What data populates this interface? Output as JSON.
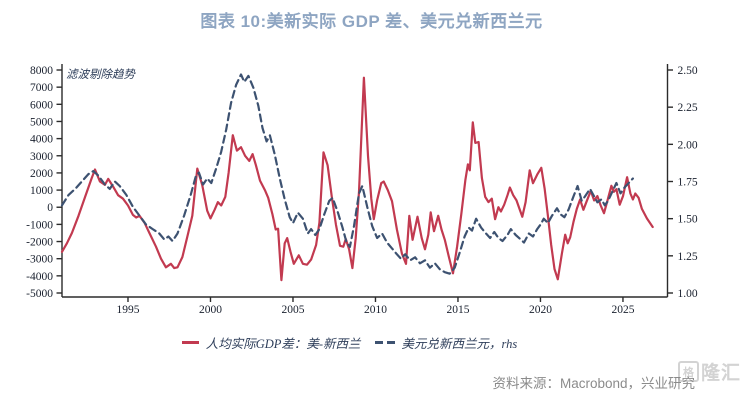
{
  "title": "图表 10:美新实际 GDP 差、美元兑新西兰元",
  "colors": {
    "title": "#8ea5c2",
    "axis": "#2b2b2b",
    "tick_label": "#19202e",
    "annotation": "#2e3e5a",
    "legend_text": "#2e3e5a",
    "footer_text": "#8b8b8b",
    "series_gdp": "#c23a50",
    "series_fx": "#3d5271"
  },
  "legend": {
    "items": [
      {
        "label": "人均实际GDP差：美-新西兰",
        "style": "solid"
      },
      {
        "label": "美元兑新西兰元，rhs",
        "style": "dashed"
      }
    ]
  },
  "footer": {
    "source_text": "资料来源：Macrobond，兴业研究"
  },
  "watermark": {
    "box_char": "格",
    "text": "隆汇"
  },
  "chart_data": {
    "type": "line",
    "title": "图表 10:美新实际 GDP 差、美元兑新西兰元",
    "annotation": "滤波剔除趋势",
    "grid": false,
    "legend_position": "bottom",
    "x_axis": {
      "range": [
        1991,
        2027.7
      ],
      "ticks": [
        1995,
        2000,
        2005,
        2010,
        2015,
        2020,
        2025
      ]
    },
    "y_left": {
      "range": [
        -5000,
        8000
      ],
      "ticks": [
        8000,
        7000,
        6000,
        5000,
        4000,
        3000,
        2000,
        1000,
        0,
        -1000,
        -2000,
        -3000,
        -4000,
        -5000
      ]
    },
    "y_right": {
      "range": [
        1.0,
        2.5
      ],
      "ticks": [
        2.5,
        2.25,
        2.0,
        1.75,
        1.5,
        1.25,
        1.0
      ]
    },
    "series": [
      {
        "name": "人均实际GDP差：美-新西兰",
        "axis": "left",
        "color": "#c23a50",
        "style": "solid",
        "points": [
          [
            1991.0,
            -2600
          ],
          [
            1991.3,
            -2100
          ],
          [
            1991.6,
            -1500
          ],
          [
            1992.0,
            -500
          ],
          [
            1992.4,
            600
          ],
          [
            1992.8,
            1700
          ],
          [
            1993.0,
            2200
          ],
          [
            1993.3,
            1500
          ],
          [
            1993.6,
            1300
          ],
          [
            1993.8,
            1650
          ],
          [
            1994.1,
            1200
          ],
          [
            1994.4,
            700
          ],
          [
            1994.7,
            500
          ],
          [
            1995.0,
            100
          ],
          [
            1995.3,
            -450
          ],
          [
            1995.5,
            -600
          ],
          [
            1995.7,
            -500
          ],
          [
            1996.0,
            -900
          ],
          [
            1996.3,
            -1500
          ],
          [
            1996.7,
            -2300
          ],
          [
            1997.0,
            -3000
          ],
          [
            1997.3,
            -3500
          ],
          [
            1997.6,
            -3300
          ],
          [
            1997.8,
            -3550
          ],
          [
            1998.0,
            -3500
          ],
          [
            1998.3,
            -2900
          ],
          [
            1998.6,
            -1700
          ],
          [
            1998.9,
            -500
          ],
          [
            1999.2,
            2250
          ],
          [
            1999.5,
            1300
          ],
          [
            1999.8,
            -200
          ],
          [
            2000.0,
            -650
          ],
          [
            2000.25,
            -150
          ],
          [
            2000.45,
            300
          ],
          [
            2000.65,
            100
          ],
          [
            2000.9,
            600
          ],
          [
            2001.1,
            2000
          ],
          [
            2001.35,
            4200
          ],
          [
            2001.6,
            3300
          ],
          [
            2001.85,
            3500
          ],
          [
            2002.1,
            3000
          ],
          [
            2002.35,
            2700
          ],
          [
            2002.55,
            3100
          ],
          [
            2002.75,
            2450
          ],
          [
            2003.0,
            1550
          ],
          [
            2003.3,
            1000
          ],
          [
            2003.5,
            550
          ],
          [
            2003.75,
            -400
          ],
          [
            2003.95,
            -1300
          ],
          [
            2004.1,
            -1250
          ],
          [
            2004.3,
            -4250
          ],
          [
            2004.5,
            -2100
          ],
          [
            2004.65,
            -1800
          ],
          [
            2004.85,
            -2600
          ],
          [
            2005.05,
            -3300
          ],
          [
            2005.35,
            -2800
          ],
          [
            2005.6,
            -3300
          ],
          [
            2005.85,
            -3350
          ],
          [
            2006.1,
            -3050
          ],
          [
            2006.4,
            -2200
          ],
          [
            2006.6,
            -900
          ],
          [
            2006.85,
            3200
          ],
          [
            2007.1,
            2450
          ],
          [
            2007.35,
            600
          ],
          [
            2007.6,
            -1000
          ],
          [
            2007.85,
            -2250
          ],
          [
            2008.05,
            -2300
          ],
          [
            2008.2,
            -1850
          ],
          [
            2008.4,
            -2450
          ],
          [
            2008.6,
            -3550
          ],
          [
            2008.8,
            -1800
          ],
          [
            2009.0,
            900
          ],
          [
            2009.3,
            7550
          ],
          [
            2009.55,
            3000
          ],
          [
            2009.75,
            500
          ],
          [
            2009.9,
            -700
          ],
          [
            2010.1,
            400
          ],
          [
            2010.35,
            1400
          ],
          [
            2010.5,
            1500
          ],
          [
            2010.75,
            1000
          ],
          [
            2011.0,
            350
          ],
          [
            2011.3,
            -1300
          ],
          [
            2011.6,
            -2700
          ],
          [
            2011.85,
            -3300
          ],
          [
            2012.05,
            -500
          ],
          [
            2012.25,
            -1900
          ],
          [
            2012.55,
            -550
          ],
          [
            2012.8,
            -1800
          ],
          [
            2013.0,
            -2450
          ],
          [
            2013.2,
            -1600
          ],
          [
            2013.35,
            -300
          ],
          [
            2013.55,
            -1400
          ],
          [
            2013.8,
            -500
          ],
          [
            2014.0,
            -1300
          ],
          [
            2014.2,
            -1900
          ],
          [
            2014.45,
            -2900
          ],
          [
            2014.7,
            -3850
          ],
          [
            2014.95,
            -2300
          ],
          [
            2015.2,
            -400
          ],
          [
            2015.45,
            1600
          ],
          [
            2015.6,
            2500
          ],
          [
            2015.72,
            2150
          ],
          [
            2015.9,
            4950
          ],
          [
            2016.05,
            3750
          ],
          [
            2016.25,
            3800
          ],
          [
            2016.45,
            1700
          ],
          [
            2016.65,
            600
          ],
          [
            2016.85,
            300
          ],
          [
            2017.05,
            500
          ],
          [
            2017.25,
            -700
          ],
          [
            2017.45,
            0
          ],
          [
            2017.6,
            -250
          ],
          [
            2017.8,
            150
          ],
          [
            2018.0,
            700
          ],
          [
            2018.15,
            1150
          ],
          [
            2018.35,
            700
          ],
          [
            2018.55,
            400
          ],
          [
            2018.75,
            -150
          ],
          [
            2018.9,
            -550
          ],
          [
            2019.1,
            300
          ],
          [
            2019.35,
            2150
          ],
          [
            2019.55,
            1400
          ],
          [
            2019.8,
            1900
          ],
          [
            2020.05,
            2300
          ],
          [
            2020.25,
            1100
          ],
          [
            2020.45,
            -500
          ],
          [
            2020.65,
            -2200
          ],
          [
            2020.85,
            -3600
          ],
          [
            2021.05,
            -4200
          ],
          [
            2021.3,
            -2700
          ],
          [
            2021.5,
            -1600
          ],
          [
            2021.65,
            -2100
          ],
          [
            2021.8,
            -1750
          ],
          [
            2022.0,
            -850
          ],
          [
            2022.2,
            -100
          ],
          [
            2022.4,
            450
          ],
          [
            2022.6,
            -150
          ],
          [
            2022.8,
            350
          ],
          [
            2023.05,
            950
          ],
          [
            2023.25,
            400
          ],
          [
            2023.45,
            650
          ],
          [
            2023.65,
            100
          ],
          [
            2023.85,
            -350
          ],
          [
            2024.05,
            350
          ],
          [
            2024.3,
            1250
          ],
          [
            2024.45,
            900
          ],
          [
            2024.6,
            1050
          ],
          [
            2024.8,
            150
          ],
          [
            2025.0,
            650
          ],
          [
            2025.25,
            1750
          ],
          [
            2025.45,
            800
          ],
          [
            2025.6,
            450
          ],
          [
            2025.75,
            800
          ],
          [
            2025.95,
            550
          ],
          [
            2026.15,
            -100
          ],
          [
            2026.45,
            -650
          ],
          [
            2026.8,
            -1150
          ]
        ]
      },
      {
        "name": "美元兑新西兰元，rhs",
        "axis": "right",
        "color": "#3d5271",
        "style": "dashed",
        "points": [
          [
            1991.0,
            1.59
          ],
          [
            1991.4,
            1.66
          ],
          [
            1991.8,
            1.7
          ],
          [
            1992.2,
            1.75
          ],
          [
            1992.6,
            1.8
          ],
          [
            1992.9,
            1.82
          ],
          [
            1993.2,
            1.79
          ],
          [
            1993.6,
            1.73
          ],
          [
            1993.9,
            1.7
          ],
          [
            1994.2,
            1.75
          ],
          [
            1994.5,
            1.72
          ],
          [
            1994.9,
            1.66
          ],
          [
            1995.3,
            1.58
          ],
          [
            1995.7,
            1.52
          ],
          [
            1996.1,
            1.46
          ],
          [
            1996.5,
            1.43
          ],
          [
            1996.9,
            1.4
          ],
          [
            1997.2,
            1.36
          ],
          [
            1997.45,
            1.38
          ],
          [
            1997.7,
            1.35
          ],
          [
            1998.0,
            1.4
          ],
          [
            1998.4,
            1.52
          ],
          [
            1998.8,
            1.66
          ],
          [
            1999.1,
            1.78
          ],
          [
            1999.3,
            1.81
          ],
          [
            1999.55,
            1.73
          ],
          [
            1999.8,
            1.77
          ],
          [
            2000.05,
            1.74
          ],
          [
            2000.35,
            1.84
          ],
          [
            2000.65,
            1.95
          ],
          [
            2000.95,
            2.1
          ],
          [
            2001.25,
            2.28
          ],
          [
            2001.55,
            2.4
          ],
          [
            2001.85,
            2.47
          ],
          [
            2002.05,
            2.42
          ],
          [
            2002.3,
            2.46
          ],
          [
            2002.6,
            2.38
          ],
          [
            2002.9,
            2.26
          ],
          [
            2003.15,
            2.11
          ],
          [
            2003.4,
            2.02
          ],
          [
            2003.6,
            2.06
          ],
          [
            2003.9,
            1.93
          ],
          [
            2004.2,
            1.77
          ],
          [
            2004.5,
            1.63
          ],
          [
            2004.8,
            1.51
          ],
          [
            2005.0,
            1.47
          ],
          [
            2005.3,
            1.54
          ],
          [
            2005.6,
            1.5
          ],
          [
            2005.9,
            1.4
          ],
          [
            2006.1,
            1.43
          ],
          [
            2006.35,
            1.39
          ],
          [
            2006.6,
            1.43
          ],
          [
            2006.9,
            1.53
          ],
          [
            2007.2,
            1.62
          ],
          [
            2007.4,
            1.64
          ],
          [
            2007.7,
            1.55
          ],
          [
            2008.0,
            1.44
          ],
          [
            2008.25,
            1.34
          ],
          [
            2008.45,
            1.31
          ],
          [
            2008.7,
            1.45
          ],
          [
            2009.0,
            1.67
          ],
          [
            2009.2,
            1.72
          ],
          [
            2009.5,
            1.58
          ],
          [
            2009.8,
            1.45
          ],
          [
            2010.1,
            1.37
          ],
          [
            2010.4,
            1.4
          ],
          [
            2010.7,
            1.34
          ],
          [
            2011.0,
            1.3
          ],
          [
            2011.3,
            1.26
          ],
          [
            2011.55,
            1.23
          ],
          [
            2011.8,
            1.26
          ],
          [
            2012.1,
            1.22
          ],
          [
            2012.4,
            1.24
          ],
          [
            2012.7,
            1.2
          ],
          [
            2013.0,
            1.22
          ],
          [
            2013.3,
            1.17
          ],
          [
            2013.6,
            1.2
          ],
          [
            2013.9,
            1.16
          ],
          [
            2014.2,
            1.14
          ],
          [
            2014.5,
            1.13
          ],
          [
            2014.8,
            1.17
          ],
          [
            2015.1,
            1.27
          ],
          [
            2015.4,
            1.38
          ],
          [
            2015.65,
            1.44
          ],
          [
            2015.85,
            1.42
          ],
          [
            2016.1,
            1.5
          ],
          [
            2016.4,
            1.44
          ],
          [
            2016.7,
            1.4
          ],
          [
            2016.95,
            1.37
          ],
          [
            2017.2,
            1.41
          ],
          [
            2017.45,
            1.37
          ],
          [
            2017.7,
            1.35
          ],
          [
            2018.0,
            1.39
          ],
          [
            2018.2,
            1.43
          ],
          [
            2018.5,
            1.39
          ],
          [
            2018.8,
            1.36
          ],
          [
            2019.0,
            1.34
          ],
          [
            2019.3,
            1.4
          ],
          [
            2019.55,
            1.38
          ],
          [
            2019.8,
            1.43
          ],
          [
            2020.0,
            1.46
          ],
          [
            2020.2,
            1.5
          ],
          [
            2020.45,
            1.47
          ],
          [
            2020.7,
            1.52
          ],
          [
            2021.0,
            1.57
          ],
          [
            2021.2,
            1.53
          ],
          [
            2021.45,
            1.51
          ],
          [
            2021.7,
            1.56
          ],
          [
            2022.0,
            1.65
          ],
          [
            2022.25,
            1.72
          ],
          [
            2022.5,
            1.62
          ],
          [
            2022.7,
            1.65
          ],
          [
            2023.0,
            1.7
          ],
          [
            2023.2,
            1.66
          ],
          [
            2023.45,
            1.61
          ],
          [
            2023.7,
            1.63
          ],
          [
            2023.9,
            1.59
          ],
          [
            2024.1,
            1.62
          ],
          [
            2024.35,
            1.68
          ],
          [
            2024.6,
            1.74
          ],
          [
            2024.85,
            1.67
          ],
          [
            2025.1,
            1.71
          ],
          [
            2025.35,
            1.74
          ],
          [
            2025.6,
            1.77
          ]
        ]
      }
    ]
  }
}
